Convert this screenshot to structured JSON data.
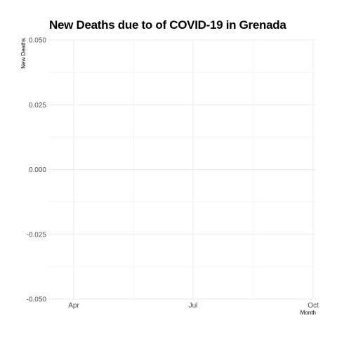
{
  "chart_data": {
    "type": "line",
    "title": "New Deaths due to of COVID-19 in Grenada",
    "xlabel": "Month",
    "ylabel": "New Deaths",
    "x_ticks": [
      "Apr",
      "Jul",
      "Oct"
    ],
    "y_ticks": [
      "0.050",
      "0.025",
      "0.000",
      "-0.025",
      "-0.050"
    ],
    "ylim": [
      -0.05,
      0.05
    ],
    "grid": true,
    "series": []
  }
}
